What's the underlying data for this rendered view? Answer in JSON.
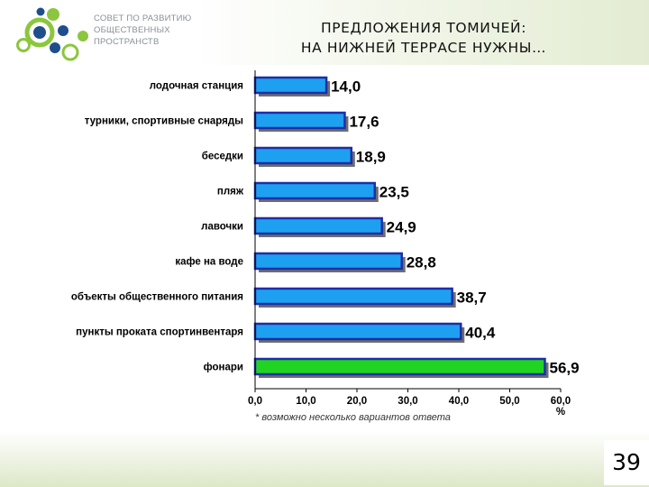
{
  "header": {
    "logo_line1": "СОВЕТ ПО РАЗВИТИЮ",
    "logo_line2": "ОБЩЕСТВЕННЫХ",
    "logo_line3": "ПРОСТРАНСТВ",
    "title_line1": "ПРЕДЛОЖЕНИЯ ТОМИЧЕЙ:",
    "title_line2": "НА НИЖНЕЙ ТЕРРАСЕ НУЖНЫ…"
  },
  "footnote": "* возможно несколько вариантов ответа",
  "page_number": "39",
  "colors": {
    "bar_default": "#1ea0f0",
    "bar_highlight": "#22d422",
    "bar_border": "#1c2ea8",
    "logo_green": "#8cc63f",
    "logo_blue": "#1f4e8c"
  },
  "chart_data": {
    "type": "bar",
    "orientation": "horizontal",
    "categories": [
      "лодочная станция",
      "турники, спортивные снаряды",
      "беседки",
      "пляж",
      "лавочки",
      "кафе на воде",
      "объекты общественного питания",
      "пункты проката спортинвентаря",
      "фонари"
    ],
    "values": [
      14.0,
      17.6,
      18.9,
      23.5,
      24.9,
      28.8,
      38.7,
      40.4,
      56.9
    ],
    "value_labels": [
      "14,0",
      "17,6",
      "18,9",
      "23,5",
      "24,9",
      "28,8",
      "38,7",
      "40,4",
      "56,9"
    ],
    "highlight_index": 8,
    "xlim": [
      0,
      60
    ],
    "x_ticks": [
      "0,0",
      "10,0",
      "20,0",
      "30,0",
      "40,0",
      "50,0",
      "60,0"
    ],
    "xlabel": "%",
    "grid": false
  }
}
